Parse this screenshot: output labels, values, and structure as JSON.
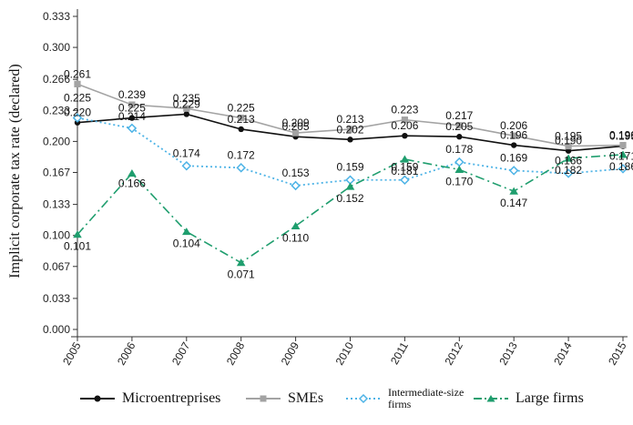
{
  "chart_data": {
    "type": "line",
    "title": "",
    "xlabel": "",
    "ylabel": "Implicit corporate tax rate (declared)",
    "x": [
      "2005",
      "2006",
      "2007",
      "2008",
      "2009",
      "2010",
      "2011",
      "2012",
      "2013",
      "2014",
      "2015"
    ],
    "y_ticks": [
      "0.000",
      "0.033",
      "0.067",
      "0.100",
      "0.133",
      "0.167",
      "0.200",
      "0.233",
      "0.266",
      "0.300",
      "0.333"
    ],
    "ylim": [
      0,
      0.333
    ],
    "grid": false,
    "legend_position": "bottom",
    "series": [
      {
        "name": "Microentreprises",
        "color": "#111111",
        "marker": "circle",
        "dash": "solid",
        "values": [
          0.22,
          0.225,
          0.229,
          0.213,
          0.205,
          0.202,
          0.206,
          0.205,
          0.196,
          0.19,
          0.195
        ],
        "labels": [
          "0.220",
          "0.225",
          "0.229",
          "0.213",
          "0.205",
          "0.202",
          "0.206",
          "0.205",
          "0.196",
          "0.190",
          "0.195"
        ]
      },
      {
        "name": "SMEs",
        "color": "#a3a3a3",
        "marker": "square",
        "dash": "solid",
        "values": [
          0.261,
          0.239,
          0.235,
          0.225,
          0.209,
          0.213,
          0.223,
          0.217,
          0.206,
          0.195,
          0.196
        ],
        "labels": [
          "0.261",
          "0.239",
          "0.235",
          "0.225",
          "0.209",
          "0.213",
          "0.223",
          "0.217",
          "0.206",
          "0.195",
          "0.196"
        ]
      },
      {
        "name": "Intermediate-size firms",
        "color": "#4db3e6",
        "marker": "diamond",
        "dash": "dotted",
        "values": [
          0.225,
          0.214,
          0.174,
          0.172,
          0.153,
          0.159,
          0.159,
          0.178,
          0.169,
          0.166,
          0.171
        ],
        "labels": [
          "0.225",
          "0.214",
          "0.174",
          "0.172",
          "0.153",
          "0.159",
          "0.159",
          "0.178",
          "0.169",
          "0.166",
          "0.171"
        ]
      },
      {
        "name": "Large firms",
        "color": "#1f9e6e",
        "marker": "triangle",
        "dash": "dashdot",
        "values": [
          0.101,
          0.166,
          0.104,
          0.071,
          0.11,
          0.152,
          0.181,
          0.17,
          0.147,
          0.182,
          0.186
        ],
        "labels": [
          "0.101",
          "0.166",
          "0.104",
          "0.071",
          "0.110",
          "0.152",
          "0.181",
          "0.170",
          "0.147",
          "0.182",
          "0.186"
        ]
      }
    ]
  }
}
